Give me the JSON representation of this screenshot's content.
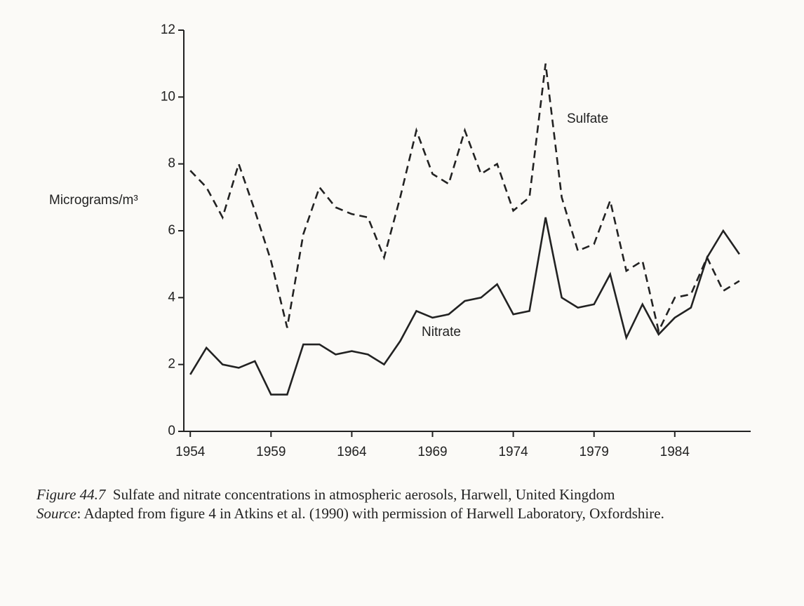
{
  "chart_data": {
    "type": "line",
    "y_label": "Micrograms/m³",
    "x": [
      1954,
      1955,
      1956,
      1957,
      1958,
      1959,
      1960,
      1961,
      1962,
      1963,
      1964,
      1965,
      1966,
      1967,
      1968,
      1969,
      1970,
      1971,
      1972,
      1973,
      1974,
      1975,
      1976,
      1977,
      1978,
      1979,
      1980,
      1981,
      1982,
      1983,
      1984,
      1985,
      1986,
      1987,
      1988
    ],
    "series": [
      {
        "name": "Sulfate",
        "color": "#222222",
        "style": "dashed",
        "values": [
          7.8,
          7.3,
          6.4,
          8.0,
          6.6,
          5.1,
          3.1,
          5.9,
          7.3,
          6.7,
          6.5,
          6.4,
          5.2,
          7.0,
          9.0,
          7.7,
          7.4,
          9.0,
          7.7,
          8.0,
          6.6,
          7.0,
          11.0,
          7.0,
          5.4,
          5.6,
          6.9,
          4.8,
          5.1,
          3.0,
          4.0,
          4.1,
          5.2,
          4.2,
          4.5
        ]
      },
      {
        "name": "Nitrate",
        "color": "#222222",
        "style": "solid",
        "values": [
          1.7,
          2.5,
          2.0,
          1.9,
          2.1,
          1.1,
          1.1,
          2.6,
          2.6,
          2.3,
          2.4,
          2.3,
          2.0,
          2.7,
          3.6,
          3.4,
          3.5,
          3.9,
          4.0,
          4.4,
          3.5,
          3.6,
          6.4,
          4.0,
          3.7,
          3.8,
          4.7,
          2.8,
          3.8,
          2.9,
          3.4,
          3.7,
          5.2,
          6.0,
          5.3
        ]
      }
    ],
    "xlim": [
      1953.6,
      1988.7
    ],
    "xticks": [
      1954,
      1959,
      1964,
      1969,
      1974,
      1979,
      1984
    ],
    "ylim": [
      0,
      12
    ],
    "yticks": [
      0,
      2,
      4,
      6,
      8,
      10,
      12
    ],
    "grid": false,
    "caption": {
      "label": "Figure 44.7",
      "text": "Sulfate and nitrate concentrations in atmospheric aerosols, Harwell, United Kingdom"
    },
    "source": {
      "label": "Source",
      "text": ": Adapted from figure 4 in Atkins et al. (1990) with permission of Harwell Laboratory, Oxfordshire."
    }
  }
}
